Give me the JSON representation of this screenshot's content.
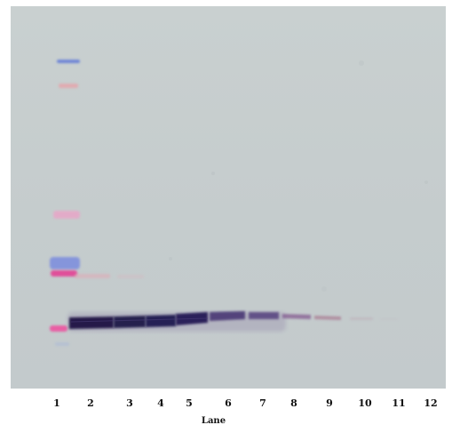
{
  "figure": {
    "lanes": [
      "1",
      "2",
      "3",
      "4",
      "5",
      "6",
      "7",
      "8",
      "9",
      "10",
      "11",
      "12"
    ],
    "axis_label": "Lane"
  },
  "colors": {
    "membrane": "#c7cecf",
    "main_band": "#14103a",
    "ladder_blue": "#6f86d6",
    "ladder_magenta": "#e0509a",
    "ladder_pink": "#e8a6c8"
  }
}
